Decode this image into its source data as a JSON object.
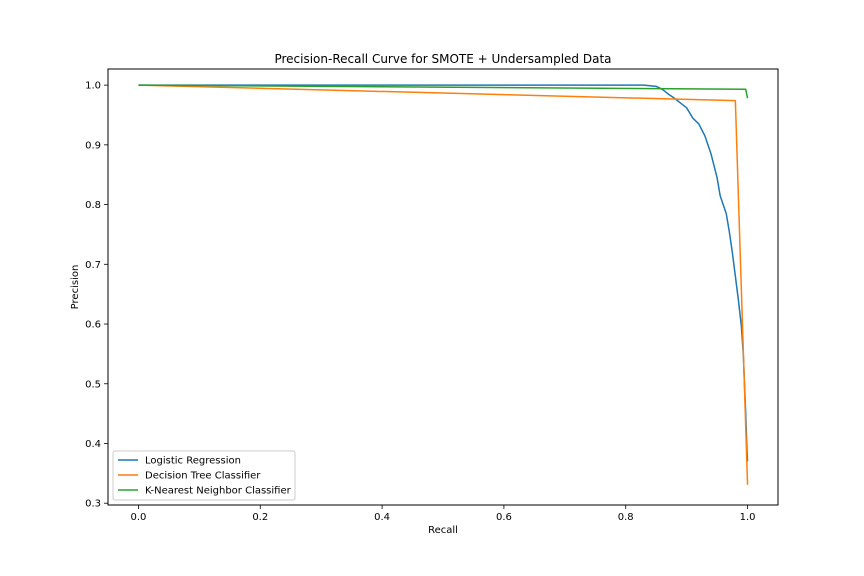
{
  "chart_data": {
    "type": "line",
    "title": "Precision-Recall Curve for SMOTE + Undersampled Data",
    "xlabel": "Recall",
    "ylabel": "Precision",
    "xlim": [
      -0.05,
      1.05
    ],
    "ylim": [
      0.297,
      1.027
    ],
    "xticks": [
      0.0,
      0.2,
      0.4,
      0.6,
      0.8,
      1.0
    ],
    "xtick_labels": [
      "0.0",
      "0.2",
      "0.4",
      "0.6",
      "0.8",
      "1.0"
    ],
    "yticks": [
      0.3,
      0.4,
      0.5,
      0.6,
      0.7,
      0.8,
      0.9,
      1.0
    ],
    "ytick_labels": [
      "0.3",
      "0.4",
      "0.5",
      "0.6",
      "0.7",
      "0.8",
      "0.9",
      "1.0"
    ],
    "grid": false,
    "legend_position": "lower-left",
    "series": [
      {
        "name": "Logistic Regression",
        "color": "#1f77b4",
        "x": [
          0.0,
          0.2,
          0.4,
          0.6,
          0.8,
          0.83,
          0.85,
          0.86,
          0.87,
          0.88,
          0.89,
          0.9,
          0.91,
          0.92,
          0.93,
          0.935,
          0.94,
          0.945,
          0.95,
          0.955,
          0.96,
          0.965,
          0.97,
          0.975,
          0.98,
          0.985,
          0.99,
          0.993,
          0.995,
          0.997,
          0.998,
          0.999,
          1.0
        ],
        "y": [
          1.0,
          1.0,
          1.0,
          1.0,
          1.0,
          1.0,
          0.998,
          0.993,
          0.985,
          0.978,
          0.97,
          0.962,
          0.945,
          0.935,
          0.915,
          0.9,
          0.885,
          0.865,
          0.845,
          0.815,
          0.8,
          0.785,
          0.755,
          0.72,
          0.68,
          0.64,
          0.595,
          0.55,
          0.5,
          0.45,
          0.42,
          0.39,
          0.37
        ]
      },
      {
        "name": "Decision Tree Classifier",
        "color": "#ff7f0e",
        "x": [
          0.0,
          0.98,
          1.0
        ],
        "y": [
          1.0,
          0.974,
          0.331
        ]
      },
      {
        "name": "K-Nearest Neighbor Classifier",
        "color": "#2ca02c",
        "x": [
          0.0,
          0.997,
          1.0
        ],
        "y": [
          1.0,
          0.993,
          0.978
        ]
      }
    ]
  }
}
